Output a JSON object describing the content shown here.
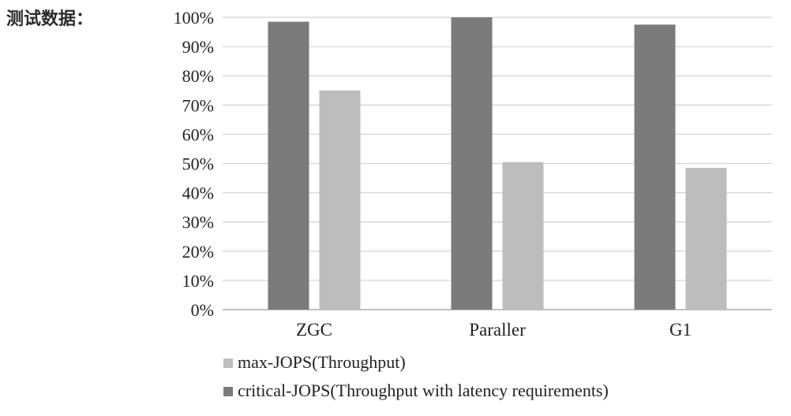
{
  "page_label": "测试数据：",
  "chart_data": {
    "type": "bar",
    "categories": [
      "ZGC",
      "Paraller",
      "G1"
    ],
    "series": [
      {
        "name": "critical-JOPS(Throughput with latency requirements)",
        "values": [
          98.5,
          100,
          97.5
        ],
        "color": "#7a7b7d"
      },
      {
        "name": "max-JOPS(Throughput)",
        "values": [
          75,
          50.5,
          48.5
        ],
        "color": "#bcbdbf"
      }
    ],
    "y_ticks": [
      "0%",
      "10%",
      "20%",
      "30%",
      "40%",
      "50%",
      "60%",
      "70%",
      "80%",
      "90%",
      "100%"
    ],
    "ylim": [
      0,
      100
    ],
    "grid": true,
    "legend_position": "bottom-left",
    "legend_order": [
      1,
      0
    ]
  }
}
